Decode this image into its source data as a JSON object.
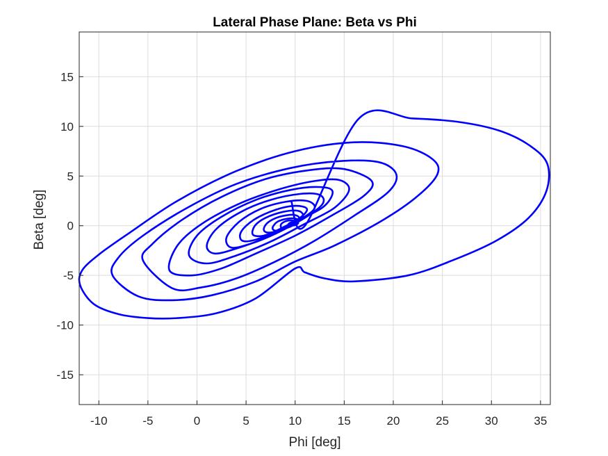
{
  "chart_data": {
    "type": "line",
    "title": "Lateral Phase Plane: Beta vs Phi",
    "xlabel": "Phi [deg]",
    "ylabel": "Beta [deg]",
    "xlim": [
      -12,
      36
    ],
    "ylim": [
      -18,
      19.5
    ],
    "xticks": [
      -10,
      -5,
      0,
      5,
      10,
      15,
      20,
      25,
      30,
      35
    ],
    "yticks": [
      -15,
      -10,
      -5,
      0,
      5,
      10,
      15
    ],
    "grid": true,
    "legend": "none",
    "colors": {
      "series": "#0000ff",
      "grid": "#dcdcdc",
      "axis": "#262626"
    },
    "series": [
      {
        "values_note": "",
        "x": [
          9.6,
          11.0,
          16.5,
          22.0,
          27.0,
          31.0,
          34.0,
          35.7,
          35.6,
          33.8,
          30.5,
          26.0,
          21.5,
          16.0,
          13.0,
          11.0,
          10.0,
          6.0,
          2.0,
          -2.0,
          -5.0,
          -8.0,
          -10.5,
          -11.9,
          -11.7,
          -10.0,
          -7.0,
          -2.0,
          4.0,
          10.0,
          16.0,
          21.0,
          24.0,
          24.5,
          22.5,
          19.0,
          14.0,
          10.0,
          6.0,
          1.5,
          -2.5,
          -6.0,
          -8.6,
          -8.0,
          -5.5,
          -1.0,
          4.0,
          9.5,
          14.5,
          18.5,
          20.3,
          19.5,
          16.0,
          12.0,
          8.0,
          4.0,
          0.5,
          -2.5,
          -5.5,
          -4.5,
          -1.5,
          2.5,
          7.0,
          11.5,
          15.0,
          17.8,
          17.0,
          13.5,
          10.0,
          6.0,
          2.5,
          -0.5,
          -2.8,
          -2.0,
          0.5,
          4.5,
          8.5,
          12.0,
          14.5,
          15.5,
          14.0,
          11.0,
          7.5,
          4.0,
          1.0,
          -0.8,
          0.0,
          2.5,
          6.0,
          9.5,
          12.3,
          13.8,
          13.0,
          10.5,
          7.0,
          4.0,
          1.8,
          1.0,
          2.0,
          4.5,
          7.5,
          10.5,
          12.5,
          12.8,
          11.0,
          8.0,
          5.5,
          3.5,
          3.0,
          4.3,
          6.5,
          9.0,
          11.2,
          12.0,
          10.8,
          8.2,
          6.0,
          4.6,
          4.5,
          5.8,
          8.0,
          10.0,
          11.2,
          10.5,
          8.5,
          6.8,
          5.7,
          5.9,
          7.0,
          8.8,
          10.3,
          10.8,
          10.0,
          8.6,
          7.3,
          6.8,
          7.2,
          8.4,
          9.8,
          10.4,
          9.9,
          8.9,
          8.0,
          7.7,
          8.2,
          9.2,
          10.1,
          10.3,
          9.9,
          9.2,
          8.6,
          8.6,
          9.2,
          9.9,
          10.3,
          10.1,
          9.6,
          9.3,
          9.5,
          10.0,
          10.3,
          10.2,
          9.9,
          10.0
        ],
        "y": [
          2.5,
          0.0,
          10.8,
          10.8,
          10.4,
          9.5,
          8.0,
          6.2,
          3.5,
          0.8,
          -1.5,
          -3.5,
          -5.0,
          -5.6,
          -5.3,
          -4.7,
          -4.3,
          -7.3,
          -8.8,
          -9.3,
          -9.3,
          -8.9,
          -7.9,
          -6.0,
          -4.5,
          -2.9,
          -0.8,
          2.5,
          5.5,
          7.5,
          8.4,
          8.0,
          6.7,
          5.2,
          3.0,
          0.6,
          -2.0,
          -3.6,
          -5.6,
          -7.0,
          -7.5,
          -7.1,
          -5.0,
          -3.2,
          -1.0,
          1.8,
          4.2,
          5.8,
          6.5,
          6.4,
          5.2,
          3.4,
          1.0,
          -1.5,
          -3.6,
          -5.3,
          -6.2,
          -6.3,
          -3.5,
          -1.8,
          0.6,
          2.9,
          4.7,
          5.6,
          5.7,
          4.5,
          3.0,
          0.9,
          -1.0,
          -2.8,
          -4.3,
          -5.0,
          -4.5,
          -2.0,
          0.2,
          2.3,
          3.7,
          4.5,
          4.6,
          3.6,
          1.8,
          0.2,
          -1.6,
          -3.0,
          -3.8,
          -3.0,
          -1.0,
          0.9,
          2.6,
          3.6,
          3.9,
          3.5,
          2.0,
          0.6,
          -1.2,
          -2.3,
          -2.8,
          -2.0,
          -0.3,
          1.4,
          2.6,
          3.2,
          3.1,
          2.2,
          0.8,
          -0.8,
          -1.8,
          -2.2,
          -1.2,
          0.4,
          1.7,
          2.4,
          2.5,
          1.8,
          0.8,
          -0.5,
          -1.4,
          -1.5,
          -0.6,
          0.6,
          1.6,
          2.0,
          1.7,
          0.8,
          -0.3,
          -1.0,
          -0.9,
          0.0,
          0.8,
          1.4,
          1.5,
          1.0,
          0.4,
          -0.4,
          -0.7,
          -0.4,
          0.3,
          0.9,
          1.1,
          0.8,
          0.3,
          -0.3,
          -0.5,
          -0.2,
          0.4,
          0.7,
          0.7,
          0.4,
          0.1,
          -0.2,
          -0.2,
          0.2,
          0.5,
          0.5,
          0.3,
          0.1,
          0.0,
          0.1,
          0.3,
          0.4,
          0.3,
          0.2,
          0.1,
          0.2
        ]
      }
    ]
  }
}
